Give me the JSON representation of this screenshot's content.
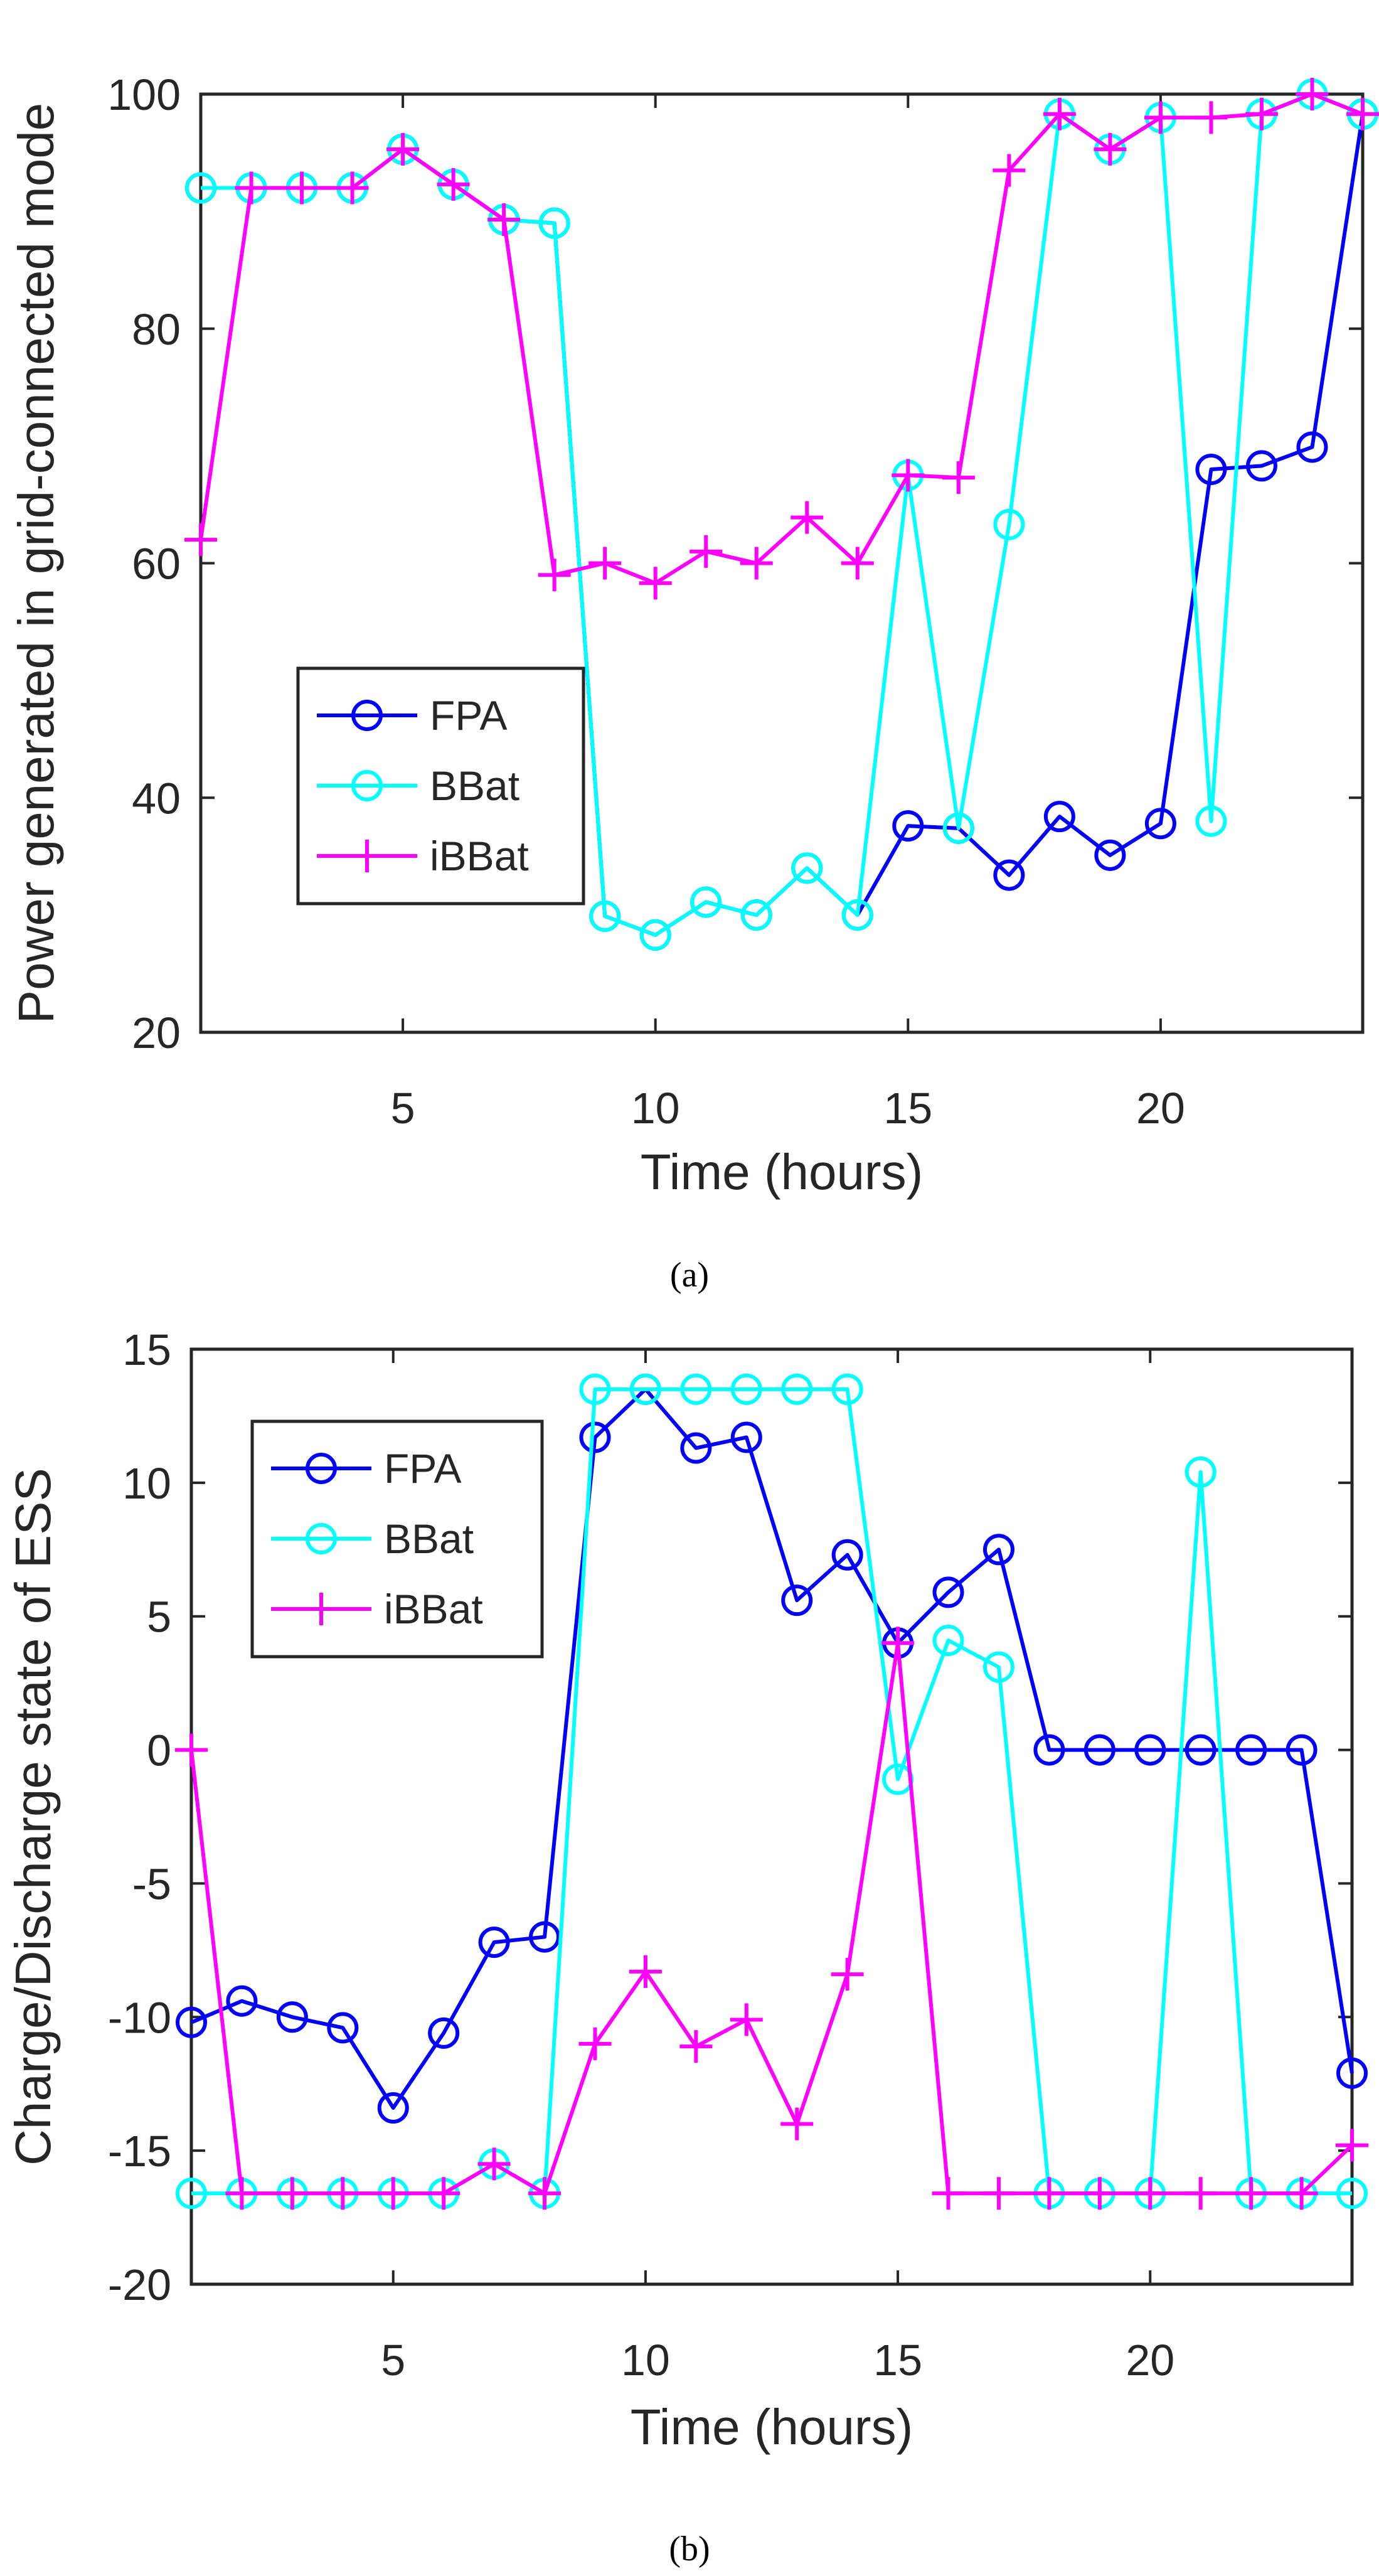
{
  "captions": [
    "(a)",
    "(b)"
  ],
  "chart_data": [
    {
      "type": "line",
      "xlabel": "Time (hours)",
      "ylabel": "Power generated in grid-connected mode",
      "xlim": [
        1,
        24
      ],
      "ylim": [
        20,
        100
      ],
      "x_ticks": [
        5,
        10,
        15,
        20
      ],
      "y_ticks": [
        20,
        40,
        60,
        80,
        100
      ],
      "grid": false,
      "legend": "center-left",
      "x": [
        1,
        2,
        3,
        4,
        5,
        6,
        7,
        8,
        9,
        10,
        11,
        12,
        13,
        14,
        15,
        16,
        17,
        18,
        19,
        20,
        21,
        22,
        23,
        24
      ],
      "series": [
        {
          "name": "FPA",
          "color": "#0000ff",
          "marker": "circle",
          "values": [
            92,
            92,
            92,
            92,
            95.3,
            92.3,
            89.3,
            89,
            29.9,
            28.3,
            31.1,
            30,
            34,
            30,
            37.6,
            37.4,
            33.4,
            38.4,
            35.1,
            37.8,
            68,
            68.3,
            69.9,
            98.3
          ]
        },
        {
          "name": "BBat",
          "color": "#00ffff",
          "marker": "circle",
          "values": [
            92,
            92,
            92,
            92,
            95.3,
            92.3,
            89.3,
            89,
            29.9,
            28.3,
            31.1,
            30,
            34,
            30,
            67.5,
            37.4,
            63.3,
            98.3,
            95.3,
            98,
            38,
            98.3,
            100,
            98.3
          ]
        },
        {
          "name": "iBBat",
          "color": "#ff00ff",
          "marker": "plus",
          "values": [
            62,
            92,
            92,
            92,
            95.3,
            92.3,
            89.3,
            59,
            60,
            58.3,
            61,
            60,
            63.9,
            60,
            67.5,
            67.3,
            93.5,
            98.3,
            95.3,
            98,
            98,
            98.3,
            100,
            98.3
          ]
        }
      ]
    },
    {
      "type": "line",
      "xlabel": "Time (hours)",
      "ylabel": "Charge/Discharge state of ESS",
      "xlim": [
        1,
        24
      ],
      "ylim": [
        -20,
        15
      ],
      "x_ticks": [
        5,
        10,
        15,
        20
      ],
      "y_ticks": [
        -20,
        -15,
        -10,
        -5,
        0,
        5,
        10,
        15
      ],
      "grid": false,
      "legend": "top-left",
      "x": [
        1,
        2,
        3,
        4,
        5,
        6,
        7,
        8,
        9,
        10,
        11,
        12,
        13,
        14,
        15,
        16,
        17,
        18,
        19,
        20,
        21,
        22,
        23,
        24
      ],
      "series": [
        {
          "name": "FPA",
          "color": "#0000ff",
          "marker": "circle",
          "values": [
            -10.2,
            -9.4,
            -10,
            -10.4,
            -13.4,
            -10.6,
            -7.2,
            -7,
            11.7,
            13.5,
            11.3,
            11.7,
            5.6,
            7.3,
            4,
            5.9,
            7.5,
            0,
            0,
            0,
            0,
            0,
            0,
            -12.1
          ]
        },
        {
          "name": "BBat",
          "color": "#00ffff",
          "marker": "circle",
          "values": [
            -16.6,
            -16.6,
            -16.6,
            -16.6,
            -16.6,
            -16.6,
            -15.5,
            -16.6,
            13.5,
            13.5,
            13.5,
            13.5,
            13.5,
            13.5,
            -1.1,
            4.1,
            3.1,
            -16.6,
            -16.6,
            -16.6,
            10.4,
            -16.6,
            -16.6,
            -16.6
          ]
        },
        {
          "name": "iBBat",
          "color": "#ff00ff",
          "marker": "plus",
          "values": [
            0,
            -16.6,
            -16.6,
            -16.6,
            -16.6,
            -16.6,
            -15.5,
            -16.6,
            -11,
            -8.3,
            -11.1,
            -10.1,
            -14,
            -8.4,
            4,
            -16.6,
            -16.6,
            -16.6,
            -16.6,
            -16.6,
            -16.6,
            -16.6,
            -16.6,
            -14.8
          ]
        }
      ]
    }
  ]
}
